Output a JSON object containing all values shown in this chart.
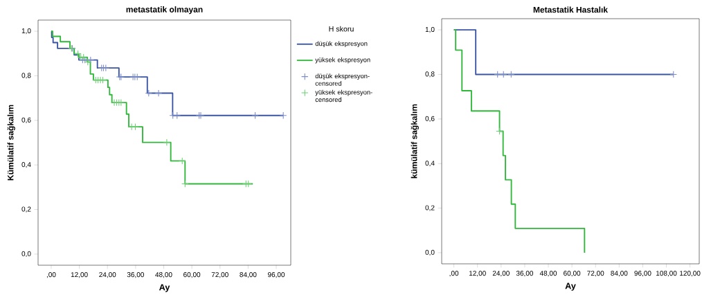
{
  "chart_data": [
    {
      "type": "step",
      "title": "metastatik olmayan",
      "xlabel": "Ay",
      "ylabel": "Kümülatif sağkalım",
      "legend": "right",
      "legend_title": "H skoru",
      "xlim": [
        -5.6,
        102.2
      ],
      "ylim": [
        -0.05,
        1.05
      ],
      "xticks": [
        {
          "value": 0,
          "label": ",00"
        },
        {
          "value": 12,
          "label": "12,00"
        },
        {
          "value": 24,
          "label": "24,00"
        },
        {
          "value": 36,
          "label": "36,00"
        },
        {
          "value": 48,
          "label": "48,00"
        },
        {
          "value": 60,
          "label": "60,00"
        },
        {
          "value": 72,
          "label": "72,00"
        },
        {
          "value": 84,
          "label": "84,00"
        },
        {
          "value": 96,
          "label": "96,00"
        }
      ],
      "yticks": [
        {
          "value": 0,
          "label": "0,0"
        },
        {
          "value": 0.2,
          "label": "0,2"
        },
        {
          "value": 0.4,
          "label": "0,4"
        },
        {
          "value": 0.6,
          "label": "0,6"
        },
        {
          "value": 0.8,
          "label": "0,8"
        },
        {
          "value": 1,
          "label": "1,0"
        }
      ],
      "series": [
        {
          "name": "düşük ekspresyon",
          "color": "#3a54a4",
          "x": [
            0,
            0.2,
            0.8,
            2.7,
            9.8,
            11.8,
            19.7,
            28.9,
            41,
            51.8,
            99
          ],
          "values": [
            1,
            0.972,
            0.949,
            0.923,
            0.894,
            0.871,
            0.835,
            0.795,
            0.722,
            0.622,
            0.622
          ]
        },
        {
          "name": "yüksek ekspresyon",
          "color": "#2fb83a",
          "x": [
            0,
            0.6,
            3.9,
            8.0,
            9.8,
            11.8,
            15.4,
            16.7,
            18.0,
            24.2,
            24.9,
            25.9,
            32.1,
            33.1,
            39.0,
            51.0,
            57.1,
            86.0
          ],
          "values": [
            1,
            0.977,
            0.953,
            0.923,
            0.899,
            0.883,
            0.862,
            0.808,
            0.781,
            0.748,
            0.715,
            0.68,
            0.628,
            0.571,
            0.501,
            0.418,
            0.315,
            0.315
          ]
        },
        {
          "name": "düşük ekspresyon-censored",
          "type": "scatter",
          "marker": "cross",
          "color": "#7b8cc6",
          "x": [
            9.0,
            13.4,
            14.4,
            16.8,
            21.5,
            22.3,
            23.3,
            29.2,
            29.8,
            34.9,
            35.7,
            36.7,
            41.6,
            45.8,
            51.9,
            53.7,
            63.1,
            63.8,
            87.0,
            99.0
          ],
          "values": [
            0.923,
            0.871,
            0.871,
            0.871,
            0.835,
            0.835,
            0.835,
            0.795,
            0.795,
            0.795,
            0.795,
            0.795,
            0.722,
            0.722,
            0.622,
            0.622,
            0.622,
            0.622,
            0.622,
            0.622
          ]
        },
        {
          "name": "yüksek ekspresyon-censored",
          "type": "scatter",
          "marker": "cross",
          "color": "#6fcf74",
          "x": [
            8.7,
            11.4,
            12.6,
            13.8,
            15.6,
            19.0,
            20.0,
            21.0,
            22.0,
            26.9,
            27.9,
            28.9,
            29.8,
            34.3,
            35.9,
            49.3,
            55.9,
            57.1,
            83.1,
            84.1
          ],
          "values": [
            0.923,
            0.899,
            0.883,
            0.883,
            0.862,
            0.781,
            0.781,
            0.781,
            0.781,
            0.68,
            0.68,
            0.68,
            0.68,
            0.571,
            0.571,
            0.501,
            0.418,
            0.315,
            0.315,
            0.315
          ]
        }
      ]
    },
    {
      "type": "step",
      "title": "Metastatik Hastalık",
      "xlabel": "Ay",
      "ylabel": "kümülatif sağkalım",
      "xlim": [
        -6.2,
        124.7
      ],
      "ylim": [
        -0.05,
        1.05
      ],
      "xticks": [
        {
          "value": 0,
          "label": ",00"
        },
        {
          "value": 12,
          "label": "12,00"
        },
        {
          "value": 24,
          "label": "24,00"
        },
        {
          "value": 36,
          "label": "36,00"
        },
        {
          "value": 48,
          "label": "48,00"
        },
        {
          "value": 60,
          "label": "60,00"
        },
        {
          "value": 72,
          "label": "72,00"
        },
        {
          "value": 84,
          "label": "84,00"
        },
        {
          "value": 96,
          "label": "96,00"
        },
        {
          "value": 108,
          "label": "108,00"
        },
        {
          "value": 120,
          "label": "120,00"
        }
      ],
      "yticks": [
        {
          "value": 0,
          "label": "0,0"
        },
        {
          "value": 0.2,
          "label": "0,2"
        },
        {
          "value": 0.4,
          "label": "0,4"
        },
        {
          "value": 0.6,
          "label": "0,6"
        },
        {
          "value": 0.8,
          "label": "0,8"
        },
        {
          "value": 1,
          "label": "1,0"
        }
      ],
      "series": [
        {
          "color": "#3a54a4",
          "x": [
            0,
            11.1,
            111.6
          ],
          "values": [
            1,
            0.8,
            0.8
          ]
        },
        {
          "color": "#2fb83a",
          "x": [
            0,
            0.9,
            4.1,
            8.9,
            23.2,
            25.0,
            26.2,
            29.2,
            31.2,
            66.4
          ],
          "values": [
            1,
            0.909,
            0.727,
            0.636,
            0.545,
            0.436,
            0.327,
            0.218,
            0.109,
            0
          ]
        },
        {
          "type": "scatter",
          "marker": "cross",
          "color": "#7b8cc6",
          "x": [
            22.2,
            25.2,
            29.1,
            111.6
          ],
          "values": [
            0.8,
            0.8,
            0.8,
            0.8
          ]
        },
        {
          "type": "scatter",
          "marker": "cross",
          "color": "#6fcf74",
          "x": [
            23.2
          ],
          "values": [
            0.545
          ]
        }
      ]
    }
  ]
}
